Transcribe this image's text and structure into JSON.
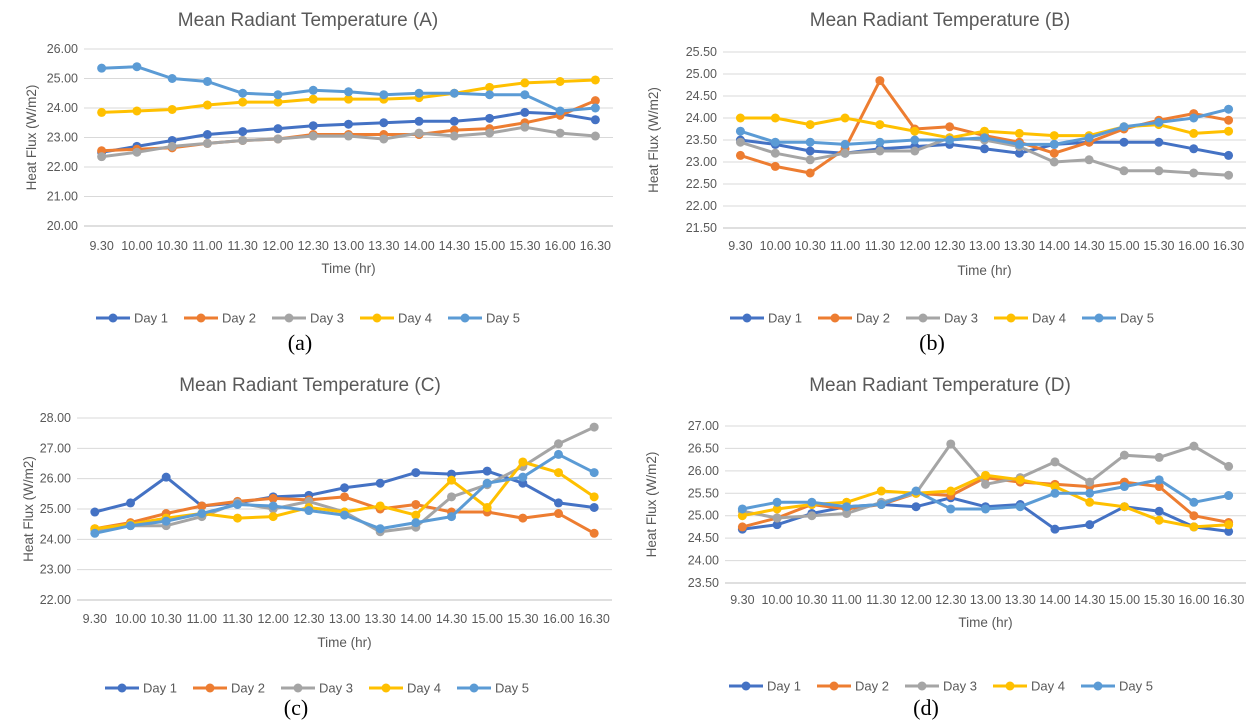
{
  "chart_data": [
    {
      "type": "line",
      "title": "Mean Radiant Temperature (A)",
      "xlabel": "Time (hr)",
      "ylabel": "Heat Flux (W/m2)",
      "caption": "(a)",
      "categories": [
        "9.30",
        "10.00",
        "10.30",
        "11.00",
        "11.30",
        "12.00",
        "12.30",
        "13.00",
        "13.30",
        "14.00",
        "14.30",
        "15.00",
        "15.30",
        "16.00",
        "16.30"
      ],
      "ylim": [
        20.0,
        26.0
      ],
      "yticks": [
        "20.00",
        "21.00",
        "22.00",
        "23.00",
        "24.00",
        "25.00",
        "26.00"
      ],
      "grid": true,
      "legend_position": "bottom",
      "series": [
        {
          "name": "Day 1",
          "color": "#4472C4",
          "values": [
            22.5,
            22.7,
            22.9,
            23.1,
            23.2,
            23.3,
            23.4,
            23.45,
            23.5,
            23.55,
            23.55,
            23.65,
            23.85,
            23.8,
            23.6
          ]
        },
        {
          "name": "Day 2",
          "color": "#ED7D31",
          "values": [
            22.55,
            22.6,
            22.65,
            22.8,
            22.9,
            22.95,
            23.1,
            23.1,
            23.1,
            23.1,
            23.25,
            23.3,
            23.5,
            23.75,
            24.25
          ]
        },
        {
          "name": "Day 3",
          "color": "#A5A5A5",
          "values": [
            22.35,
            22.5,
            22.7,
            22.8,
            22.9,
            22.95,
            23.05,
            23.05,
            22.95,
            23.15,
            23.05,
            23.15,
            23.35,
            23.15,
            23.05
          ]
        },
        {
          "name": "Day 4",
          "color": "#FFC000",
          "values": [
            23.85,
            23.9,
            23.95,
            24.1,
            24.2,
            24.2,
            24.3,
            24.3,
            24.3,
            24.35,
            24.5,
            24.7,
            24.85,
            24.9,
            24.95
          ]
        },
        {
          "name": "Day 5",
          "color": "#5B9BD5",
          "values": [
            25.35,
            25.4,
            25.0,
            24.9,
            24.5,
            24.45,
            24.6,
            24.55,
            24.45,
            24.5,
            24.5,
            24.45,
            24.45,
            23.9,
            24.0
          ]
        }
      ]
    },
    {
      "type": "line",
      "title": "Mean Radiant Temperature (B)",
      "xlabel": "Time (hr)",
      "ylabel": "Heat Flux (W/m2)",
      "caption": "(b)",
      "categories": [
        "9.30",
        "10.00",
        "10.30",
        "11.00",
        "11.30",
        "12.00",
        "12.30",
        "13.00",
        "13.30",
        "14.00",
        "14.30",
        "15.00",
        "15.30",
        "16.00",
        "16.30"
      ],
      "ylim": [
        21.5,
        25.5
      ],
      "yticks": [
        "21.50",
        "22.00",
        "22.50",
        "23.00",
        "23.50",
        "24.00",
        "24.50",
        "25.00",
        "25.50"
      ],
      "grid": true,
      "legend_position": "bottom",
      "series": [
        {
          "name": "Day 1",
          "color": "#4472C4",
          "values": [
            23.5,
            23.4,
            23.25,
            23.2,
            23.3,
            23.35,
            23.4,
            23.3,
            23.2,
            23.4,
            23.45,
            23.45,
            23.45,
            23.3,
            23.15
          ]
        },
        {
          "name": "Day 2",
          "color": "#ED7D31",
          "values": [
            23.15,
            22.9,
            22.75,
            23.3,
            24.85,
            23.75,
            23.8,
            23.6,
            23.45,
            23.2,
            23.45,
            23.75,
            23.95,
            24.1,
            23.95
          ]
        },
        {
          "name": "Day 3",
          "color": "#A5A5A5",
          "values": [
            23.45,
            23.2,
            23.05,
            23.2,
            23.25,
            23.25,
            23.55,
            23.5,
            23.35,
            23.0,
            23.05,
            22.8,
            22.8,
            22.75,
            22.7
          ]
        },
        {
          "name": "Day 4",
          "color": "#FFC000",
          "values": [
            24.0,
            24.0,
            23.85,
            24.0,
            23.85,
            23.7,
            23.55,
            23.7,
            23.65,
            23.6,
            23.6,
            23.8,
            23.85,
            23.65,
            23.7
          ]
        },
        {
          "name": "Day 5",
          "color": "#5B9BD5",
          "values": [
            23.7,
            23.45,
            23.45,
            23.4,
            23.45,
            23.5,
            23.5,
            23.55,
            23.4,
            23.4,
            23.55,
            23.8,
            23.9,
            24.0,
            24.2
          ]
        }
      ]
    },
    {
      "type": "line",
      "title": "Mean Radiant Temperature (C)",
      "xlabel": "Time (hr)",
      "ylabel": "Heat Flux (W/m2)",
      "caption": "(c)",
      "categories": [
        "9.30",
        "10.00",
        "10.30",
        "11.00",
        "11.30",
        "12.00",
        "12.30",
        "13.00",
        "13.30",
        "14.00",
        "14.30",
        "15.00",
        "15.30",
        "16.00",
        "16.30"
      ],
      "ylim": [
        22.0,
        28.0
      ],
      "yticks": [
        "22.00",
        "23.00",
        "24.00",
        "25.00",
        "26.00",
        "27.00",
        "28.00"
      ],
      "grid": true,
      "legend_position": "bottom",
      "series": [
        {
          "name": "Day 1",
          "color": "#4472C4",
          "values": [
            24.9,
            25.2,
            26.05,
            25.1,
            25.2,
            25.4,
            25.45,
            25.7,
            25.85,
            26.2,
            26.15,
            26.25,
            25.85,
            25.2,
            25.05
          ]
        },
        {
          "name": "Day 2",
          "color": "#ED7D31",
          "values": [
            24.35,
            24.55,
            24.85,
            25.1,
            25.25,
            25.35,
            25.3,
            25.4,
            25.0,
            25.15,
            24.9,
            24.9,
            24.7,
            24.85,
            24.2
          ]
        },
        {
          "name": "Day 3",
          "color": "#A5A5A5",
          "values": [
            24.3,
            24.45,
            24.45,
            24.75,
            25.2,
            25.0,
            25.25,
            24.9,
            24.25,
            24.4,
            25.4,
            25.8,
            26.4,
            27.15,
            27.7
          ]
        },
        {
          "name": "Day 4",
          "color": "#FFC000",
          "values": [
            24.35,
            24.5,
            24.7,
            24.85,
            24.7,
            24.75,
            25.05,
            24.9,
            25.1,
            24.8,
            25.95,
            25.05,
            26.55,
            26.2,
            25.4
          ]
        },
        {
          "name": "Day 5",
          "color": "#5B9BD5",
          "values": [
            24.2,
            24.45,
            24.6,
            24.85,
            25.15,
            25.1,
            24.95,
            24.8,
            24.35,
            24.55,
            24.75,
            25.85,
            26.05,
            26.8,
            26.2
          ]
        }
      ]
    },
    {
      "type": "line",
      "title": "Mean Radiant Temperature (D)",
      "xlabel": "Time (hr)",
      "ylabel": "Heat Flux (W/m2)",
      "caption": "(d)",
      "categories": [
        "9.30",
        "10.00",
        "10.30",
        "11.00",
        "11.30",
        "12.00",
        "12.30",
        "13.00",
        "13.30",
        "14.00",
        "14.30",
        "15.00",
        "15.30",
        "16.00",
        "16.30"
      ],
      "ylim": [
        23.5,
        27.0
      ],
      "yticks": [
        "23.50",
        "24.00",
        "24.50",
        "25.00",
        "25.50",
        "26.00",
        "26.50",
        "27.00"
      ],
      "grid": true,
      "legend_position": "bottom",
      "series": [
        {
          "name": "Day 1",
          "color": "#4472C4",
          "values": [
            24.7,
            24.8,
            25.05,
            25.2,
            25.25,
            25.2,
            25.4,
            25.2,
            25.25,
            24.7,
            24.8,
            25.2,
            25.1,
            24.75,
            24.65
          ]
        },
        {
          "name": "Day 2",
          "color": "#ED7D31",
          "values": [
            24.75,
            24.95,
            25.25,
            25.15,
            25.25,
            25.5,
            25.45,
            25.85,
            25.75,
            25.7,
            25.65,
            25.75,
            25.65,
            25.0,
            24.85
          ]
        },
        {
          "name": "Day 3",
          "color": "#A5A5A5",
          "values": [
            25.1,
            24.95,
            25.0,
            25.05,
            25.3,
            25.5,
            26.6,
            25.7,
            25.85,
            26.2,
            25.75,
            26.35,
            26.3,
            26.55,
            26.1
          ]
        },
        {
          "name": "Day 4",
          "color": "#FFC000",
          "values": [
            25.0,
            25.15,
            25.25,
            25.3,
            25.55,
            25.5,
            25.55,
            25.9,
            25.8,
            25.65,
            25.3,
            25.2,
            24.9,
            24.75,
            24.8
          ]
        },
        {
          "name": "Day 5",
          "color": "#5B9BD5",
          "values": [
            25.15,
            25.3,
            25.3,
            25.2,
            25.25,
            25.55,
            25.15,
            25.15,
            25.2,
            25.5,
            25.5,
            25.65,
            25.8,
            25.3,
            25.45
          ]
        }
      ]
    }
  ]
}
